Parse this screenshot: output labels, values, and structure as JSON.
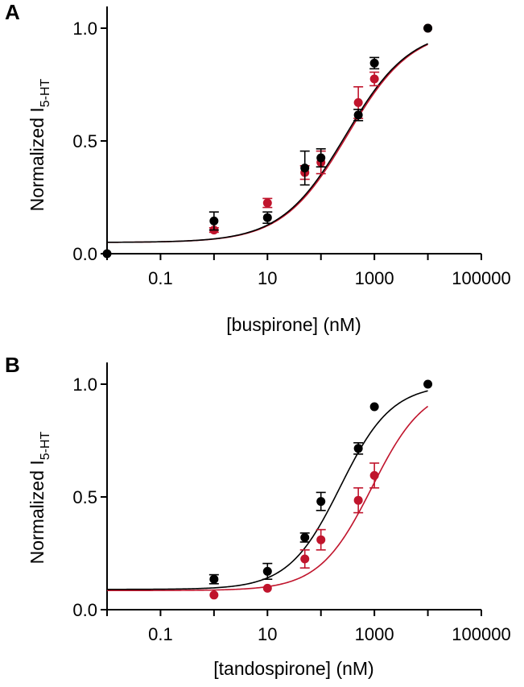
{
  "chart_data": [
    {
      "type": "scatter",
      "panel_label": "A",
      "xlabel": "[buspirone] (nM)",
      "ylabel_main": "Normalized I",
      "ylabel_sub": "5-HT",
      "xscale": "log",
      "xlim": [
        0.01,
        100000
      ],
      "ylim": [
        0,
        1.1
      ],
      "xticks": [
        0.1,
        10,
        1000,
        100000
      ],
      "xtick_labels": [
        "0.1",
        "10",
        "1000",
        "100000"
      ],
      "yticks": [
        0,
        0.5,
        1
      ],
      "ytick_labels": [
        "0.0",
        "0.5",
        "1.0"
      ],
      "grid": false,
      "series": [
        {
          "color": "#c0142c",
          "x": [
            1,
            10,
            50,
            100,
            500,
            1000,
            10000
          ],
          "y": [
            0.105,
            0.225,
            0.36,
            0.405,
            0.67,
            0.775,
            1.0
          ],
          "err": [
            0.01,
            0.02,
            0.03,
            0.05,
            0.07,
            0.03,
            0.0
          ],
          "fit": {
            "bottom": 0.05,
            "top": 1.0,
            "ec50": 310,
            "hill": 0.72
          }
        },
        {
          "color": "#000000",
          "x": [
            0.01,
            1,
            10,
            50,
            100,
            500,
            1000,
            10000
          ],
          "y": [
            0.0,
            0.145,
            0.16,
            0.38,
            0.425,
            0.615,
            0.845,
            1.0
          ],
          "err": [
            0.0,
            0.04,
            0.025,
            0.075,
            0.04,
            0.025,
            0.025,
            0.0
          ],
          "fit": {
            "bottom": 0.05,
            "top": 1.0,
            "ec50": 290,
            "hill": 0.72
          }
        }
      ]
    },
    {
      "type": "scatter",
      "panel_label": "B",
      "xlabel": "[tandospirone] (nM)",
      "ylabel_main": "Normalized I",
      "ylabel_sub": "5-HT",
      "xscale": "log",
      "xlim": [
        0.01,
        100000
      ],
      "ylim": [
        0,
        1.1
      ],
      "xticks": [
        0.1,
        10,
        1000,
        100000
      ],
      "xtick_labels": [
        "0.1",
        "10",
        "1000",
        "100000"
      ],
      "yticks": [
        0,
        0.5,
        1
      ],
      "ytick_labels": [
        "0.0",
        "0.5",
        "1.0"
      ],
      "grid": false,
      "series": [
        {
          "color": "#c0142c",
          "x": [
            1,
            10,
            50,
            100,
            500,
            1000
          ],
          "y": [
            0.065,
            0.095,
            0.225,
            0.31,
            0.485,
            0.595
          ],
          "err": [
            0.0,
            0.0,
            0.04,
            0.045,
            0.055,
            0.055
          ],
          "fit": {
            "bottom": 0.085,
            "top": 1.0,
            "ec50": 900,
            "hill": 0.88
          }
        },
        {
          "color": "#000000",
          "x": [
            1,
            10,
            50,
            100,
            500,
            1000,
            10000
          ],
          "y": [
            0.135,
            0.17,
            0.32,
            0.48,
            0.715,
            0.9,
            1.0
          ],
          "err": [
            0.02,
            0.035,
            0.02,
            0.04,
            0.025,
            0.0,
            0.0
          ],
          "fit": {
            "bottom": 0.09,
            "top": 1.0,
            "ec50": 230,
            "hill": 0.9
          }
        }
      ]
    }
  ]
}
